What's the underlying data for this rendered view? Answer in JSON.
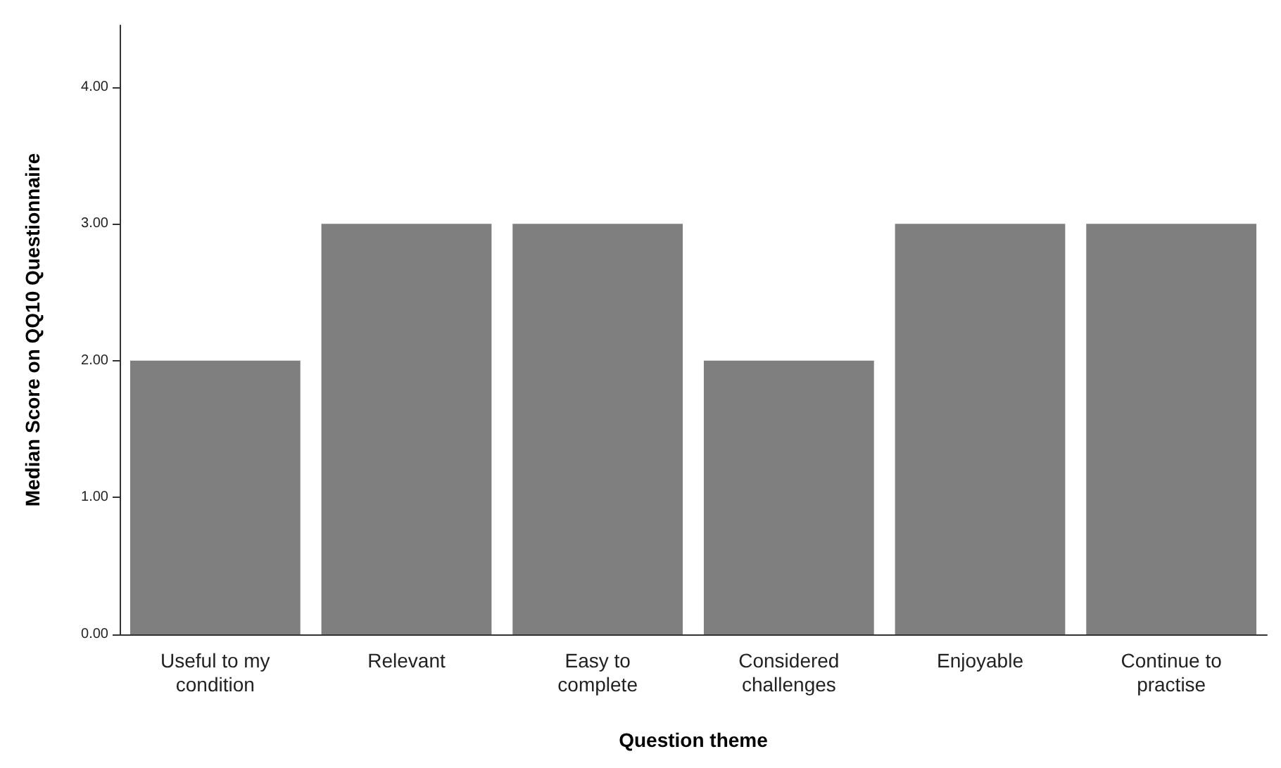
{
  "chart_data": {
    "type": "bar",
    "xlabel": "Question theme",
    "ylabel": "Median Score on QQ10 Questionnaire",
    "categories": [
      "Useful to my\ncondition",
      "Relevant",
      "Easy to\ncomplete",
      "Considered\nchallenges",
      "Enjoyable",
      "Continue to\npractise"
    ],
    "values": [
      2,
      3,
      3,
      2,
      3,
      3
    ],
    "color": "#7f7f7f",
    "ylim": [
      0,
      4.45
    ],
    "yticks": [
      {
        "value": 0,
        "label": "0.00"
      },
      {
        "value": 1,
        "label": "1.00"
      },
      {
        "value": 2,
        "label": "2.00"
      },
      {
        "value": 3,
        "label": "3.00"
      },
      {
        "value": 4,
        "label": "4.00"
      }
    ],
    "grid": false
  }
}
